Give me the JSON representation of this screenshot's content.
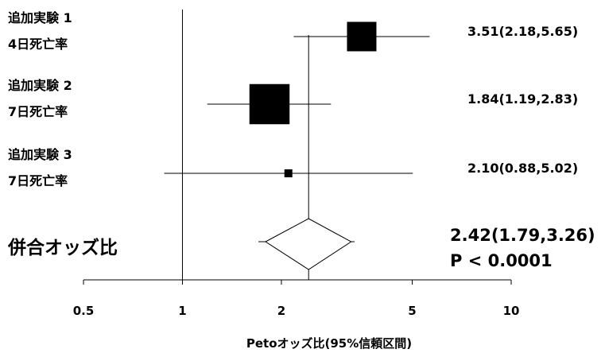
{
  "chart_data": {
    "type": "forest",
    "xlabel": "Petoオッズ比(95%信頼区間)",
    "x_scale": "log",
    "xlim": [
      0.5,
      10
    ],
    "ticks": [
      {
        "value": 0.5,
        "label": "0.5"
      },
      {
        "value": 1,
        "label": "1"
      },
      {
        "value": 2,
        "label": "2"
      },
      {
        "value": 5,
        "label": "5"
      },
      {
        "value": 10,
        "label": "10"
      }
    ],
    "null_line": 1,
    "studies": [
      {
        "label1": "追加実験 1",
        "label2": "4日死亡率",
        "or": 3.51,
        "lo": 2.18,
        "hi": 5.65,
        "text": "3.51(2.18,5.65)",
        "weight": 3
      },
      {
        "label1": "追加実験 2",
        "label2": "7日死亡率",
        "or": 1.84,
        "lo": 1.19,
        "hi": 2.83,
        "text": "1.84(1.19,2.83)",
        "weight": 4
      },
      {
        "label1": "追加実験 3",
        "label2": "7日死亡率",
        "or": 2.1,
        "lo": 0.88,
        "hi": 5.02,
        "text": "2.10(0.88,5.02)",
        "weight": 1
      }
    ],
    "pooled": {
      "label": "併合オッズ比",
      "or": 2.42,
      "lo": 1.79,
      "hi": 3.26,
      "text": "2.42(1.79,3.26)",
      "p_text": "P < 0.0001"
    }
  }
}
